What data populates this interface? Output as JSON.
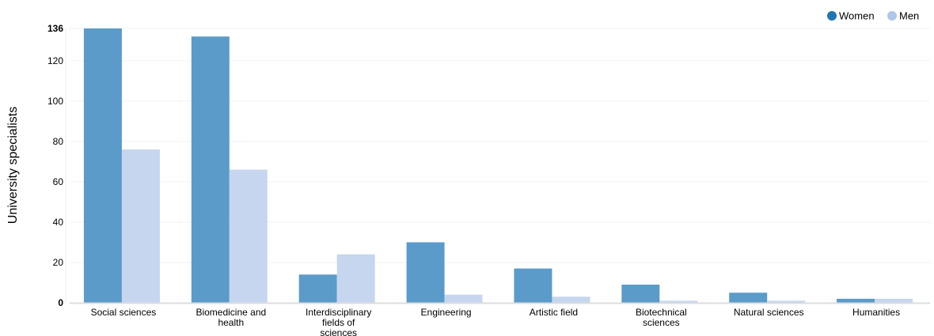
{
  "chart_data": {
    "type": "bar",
    "ylabel": "University specialists",
    "ylim": [
      0,
      136
    ],
    "yticks": [
      0,
      20,
      40,
      60,
      80,
      100,
      120,
      136
    ],
    "grid": true,
    "legend_position": "top-right",
    "categories": [
      [
        "Social sciences"
      ],
      [
        "Biomedicine and",
        "health"
      ],
      [
        "Interdisciplinary",
        "fields of",
        "sciences"
      ],
      [
        "Engineering"
      ],
      [
        "Artistic field"
      ],
      [
        "Biotechnical",
        "sciences"
      ],
      [
        "Natural sciences"
      ],
      [
        "Humanities"
      ]
    ],
    "series": [
      {
        "name": "Women",
        "color": "#5b9bc9",
        "legend_color": "#1f77b4",
        "values": [
          136,
          132,
          14,
          30,
          17,
          9,
          5,
          2
        ]
      },
      {
        "name": "Men",
        "color": "#c5d6ee",
        "legend_color": "#aec7e8",
        "values": [
          76,
          66,
          24,
          4,
          3,
          1,
          1,
          2
        ]
      }
    ]
  }
}
